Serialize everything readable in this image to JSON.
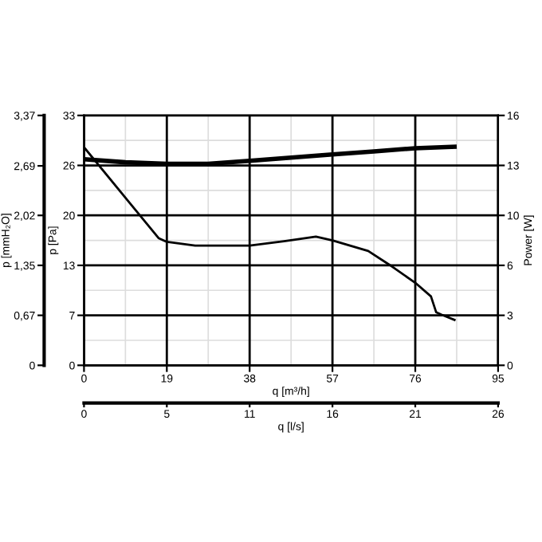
{
  "chart_data": {
    "type": "line",
    "xlabel": "q [m³/h]",
    "ylabel": "p [Pa]",
    "y2label": "Power [W]",
    "y3label": "p [mmH₂O]",
    "x2label": "q [l/s]",
    "xlim": [
      0,
      95
    ],
    "xticks": [
      0,
      19,
      38,
      57,
      76,
      95
    ],
    "ylim": [
      0,
      33
    ],
    "yticks": [
      0,
      {
        "value": 6.6,
        "label": "7"
      },
      {
        "value": 13.2,
        "label": "13"
      },
      {
        "value": 19.8,
        "label": "20"
      },
      {
        "value": 26.4,
        "label": "26"
      },
      33
    ],
    "y2lim": [
      0,
      16
    ],
    "y2ticks": [
      0,
      {
        "value": 3.2,
        "label": "3"
      },
      {
        "value": 6.4,
        "label": "6"
      },
      {
        "value": 9.6,
        "label": "10"
      },
      {
        "value": 12.8,
        "label": "13"
      },
      16
    ],
    "y3lim": [
      0,
      3.37
    ],
    "y3ticks": [
      0,
      {
        "value": 0.674,
        "label": "0,67"
      },
      {
        "value": 1.348,
        "label": "1,35"
      },
      {
        "value": 2.022,
        "label": "2,02"
      },
      {
        "value": 2.69,
        "label": "2,69"
      },
      {
        "value": 3.37,
        "label": "3,37"
      }
    ],
    "x2lim": [
      0,
      26.4
    ],
    "x2ticks": [
      0,
      {
        "value": 5.28,
        "label": "5"
      },
      {
        "value": 10.56,
        "label": "11"
      },
      {
        "value": 15.84,
        "label": "16"
      },
      {
        "value": 21.12,
        "label": "21"
      },
      {
        "value": 26.4,
        "label": "26"
      }
    ],
    "grid": true,
    "marker": "none",
    "line_style": "solid",
    "series": [
      {
        "color": "#000000",
        "x": [
          0,
          17.1,
          19,
          25.5,
          38,
          45.9,
          53.2,
          57,
          65.2,
          70,
          76,
          79.6,
          80.8,
          82,
          85
        ],
        "values": [
          28.8,
          16.8,
          16.3,
          15.8,
          15.8,
          16.4,
          17.0,
          16.5,
          15.1,
          13.3,
          10.9,
          9.1,
          7.0,
          6.7,
          6.0
        ]
      },
      {
        "color": "#000000",
        "axis": "y2",
        "x": [
          0,
          9.5,
          19,
          28.5,
          38,
          47.5,
          57,
          66.5,
          76,
          85
        ],
        "values": [
          13.2,
          13.0,
          12.9,
          12.9,
          13.1,
          13.3,
          13.5,
          13.7,
          13.9,
          14.0
        ]
      }
    ]
  }
}
